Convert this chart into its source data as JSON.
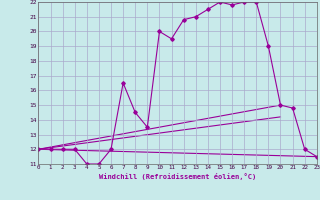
{
  "background_color": "#c8eaea",
  "grid_color": "#aaaacc",
  "line_color": "#990099",
  "xlim": [
    0,
    23
  ],
  "ylim": [
    11,
    22
  ],
  "xticks": [
    0,
    1,
    2,
    3,
    4,
    5,
    6,
    7,
    8,
    9,
    10,
    11,
    12,
    13,
    14,
    15,
    16,
    17,
    18,
    19,
    20,
    21,
    22,
    23
  ],
  "yticks": [
    11,
    12,
    13,
    14,
    15,
    16,
    17,
    18,
    19,
    20,
    21,
    22
  ],
  "xlabel": "Windchill (Refroidissement éolien,°C)",
  "series": {
    "main": {
      "x": [
        0,
        1,
        2,
        3,
        4,
        5,
        6,
        7,
        8,
        9,
        10,
        11,
        12,
        13,
        14,
        15,
        16,
        17,
        18,
        19,
        20,
        21,
        22,
        23
      ],
      "y": [
        12,
        12,
        12,
        12,
        11,
        11,
        12,
        16.5,
        14.5,
        13.5,
        20,
        19.5,
        20.8,
        21,
        21.5,
        22,
        21.8,
        22,
        22,
        19,
        15,
        14.8,
        12,
        11.5
      ]
    },
    "line2": {
      "x": [
        0,
        23
      ],
      "y": [
        12,
        11.5
      ]
    },
    "line3": {
      "x": [
        0,
        20
      ],
      "y": [
        12,
        15
      ]
    },
    "line4": {
      "x": [
        0,
        20
      ],
      "y": [
        12,
        14.2
      ]
    }
  }
}
